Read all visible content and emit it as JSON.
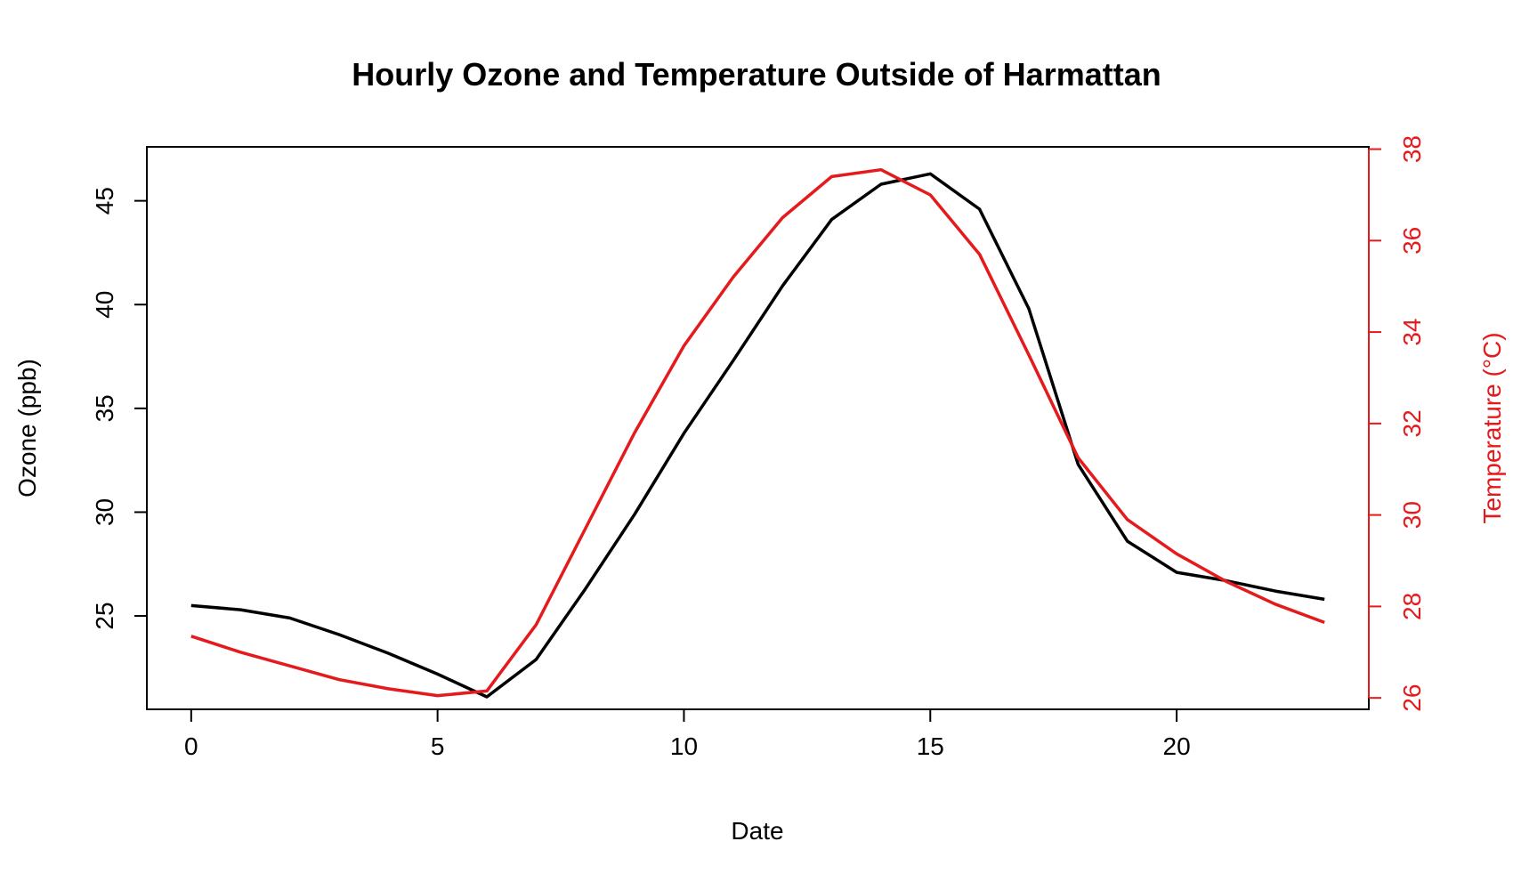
{
  "chart_data": {
    "type": "line",
    "title": "Hourly Ozone and Temperature Outside of Harmattan",
    "xlabel": "Date",
    "ylabel": "Ozone (ppb)",
    "y2label": "Temperature (°C)",
    "xlim": [
      -0.9,
      23.9
    ],
    "ylim": [
      20.5,
      47.6
    ],
    "y2lim": [
      25.75,
      38.05
    ],
    "xticks": [
      0,
      5,
      10,
      15,
      20
    ],
    "yticks": [
      25,
      30,
      35,
      40,
      45
    ],
    "y2ticks": [
      26,
      28,
      30,
      32,
      34,
      36,
      38
    ],
    "grid": false,
    "colors": {
      "ozone": "#000000",
      "temperature": "#e41a1c",
      "axis2": "#e41a1c"
    },
    "x": [
      0,
      1,
      2,
      3,
      4,
      5,
      6,
      7,
      8,
      9,
      10,
      11,
      12,
      13,
      14,
      15,
      16,
      17,
      18,
      19,
      20,
      21,
      22,
      23
    ],
    "series": [
      {
        "key": "ozone",
        "axis": "left",
        "values": [
          25.5,
          25.3,
          24.9,
          24.1,
          23.2,
          22.2,
          21.1,
          22.9,
          26.3,
          29.9,
          33.8,
          37.3,
          40.9,
          44.1,
          45.8,
          46.3,
          44.6,
          39.8,
          32.3,
          28.6,
          27.1,
          26.7,
          26.2,
          25.8
        ]
      },
      {
        "key": "temperature",
        "axis": "right",
        "values": [
          27.35,
          27.0,
          26.7,
          26.4,
          26.2,
          26.05,
          26.15,
          27.6,
          29.7,
          31.8,
          33.7,
          35.2,
          36.5,
          37.4,
          37.55,
          37.0,
          35.7,
          33.5,
          31.25,
          29.9,
          29.15,
          28.55,
          28.05,
          27.65
        ]
      }
    ]
  }
}
